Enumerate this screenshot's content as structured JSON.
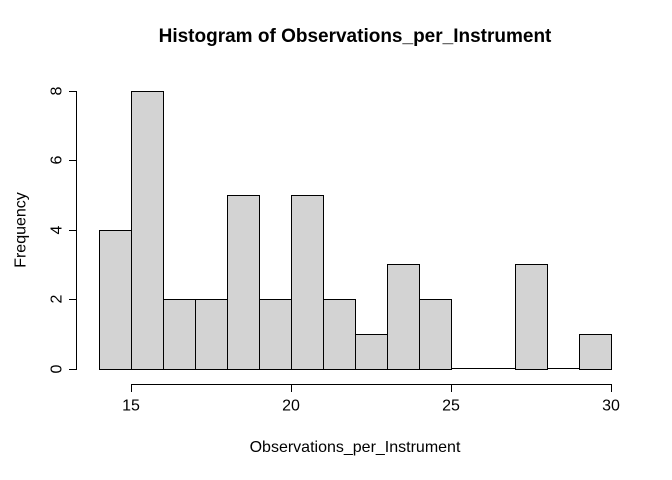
{
  "chart_data": {
    "type": "bar",
    "subtype": "histogram",
    "title": "Histogram of Observations_per_Instrument",
    "xlabel": "Observations_per_Instrument",
    "ylabel": "Frequency",
    "bin_start": 14,
    "bin_width": 1,
    "bin_edges": [
      14,
      15,
      16,
      17,
      18,
      19,
      20,
      21,
      22,
      23,
      24,
      25,
      26,
      27,
      28,
      29,
      30
    ],
    "values": [
      4,
      8,
      2,
      2,
      5,
      2,
      5,
      2,
      1,
      3,
      2,
      0,
      0,
      3,
      0,
      1
    ],
    "xlim": [
      14,
      30
    ],
    "ylim": [
      0,
      8
    ],
    "x_ticks": [
      15,
      20,
      25,
      30
    ],
    "y_ticks": [
      0,
      2,
      4,
      6,
      8
    ],
    "bar_fill": "#d3d3d3",
    "bar_border": "#000000",
    "axis_color": "#000000",
    "text_color": "#000000",
    "background": "#ffffff",
    "grid": false,
    "legend": false
  }
}
